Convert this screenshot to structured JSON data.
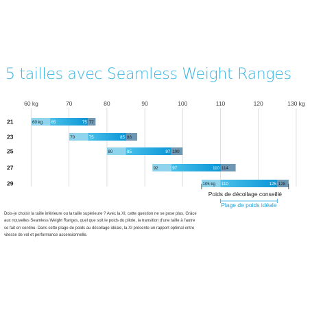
{
  "title": "5 tailles avec Seamless Weight Ranges",
  "colors": {
    "title": "#37b3e2",
    "light": "#8fd3ec",
    "ideal_start": "#4ac0ea",
    "ideal_end": "#0b96d6",
    "upper": "#6d97b3",
    "grid": "#d6d6d6",
    "legend_blue": "#1ea0dc"
  },
  "chart_data": {
    "type": "bar",
    "xlabel_ticks": [
      "60 kg",
      "70",
      "80",
      "90",
      "100",
      "110",
      "120",
      "130 kg"
    ],
    "x_tick_values": [
      60,
      70,
      80,
      90,
      100,
      110,
      120,
      130
    ],
    "xlim": [
      58,
      134
    ],
    "sizes": [
      {
        "size": "21",
        "min": 60,
        "ideal_min": 65,
        "ideal_max": 75,
        "max": 77,
        "labels": [
          "60 kg",
          "65",
          "75",
          "77"
        ]
      },
      {
        "size": "23",
        "min": 70,
        "ideal_min": 75,
        "ideal_max": 85,
        "max": 88,
        "labels": [
          "70",
          "75",
          "85",
          "88"
        ]
      },
      {
        "size": "25",
        "min": 80,
        "ideal_min": 85,
        "ideal_max": 97,
        "max": 100,
        "labels": [
          "80",
          "85",
          "97",
          "100"
        ]
      },
      {
        "size": "27",
        "min": 92,
        "ideal_min": 97,
        "ideal_max": 110,
        "max": 114,
        "labels": [
          "92",
          "97",
          "110",
          "114"
        ]
      },
      {
        "size": "29",
        "min": 105,
        "ideal_min": 110,
        "ideal_max": 125,
        "max": 128,
        "labels": [
          "105 kg",
          "110",
          "125",
          "128"
        ]
      }
    ],
    "legend": {
      "takeoff": "Poids de décollage conseillé",
      "ideal": "Plage de poids idéale"
    },
    "grid": true
  },
  "description": "Dois-je choisir la taille inférieure ou la taille supérieure ? Avec la XI, cette question ne se pose plus. Grâce aux nouvelles Seamless Weight Ranges, quel que soit le poids du pilote, la transition d'une taille à l'autre se fait en continu. Dans cette plage de poids au décollage idéale, la XI présente un rapport optimal entre vitesse de vol et performance ascensionnelle."
}
